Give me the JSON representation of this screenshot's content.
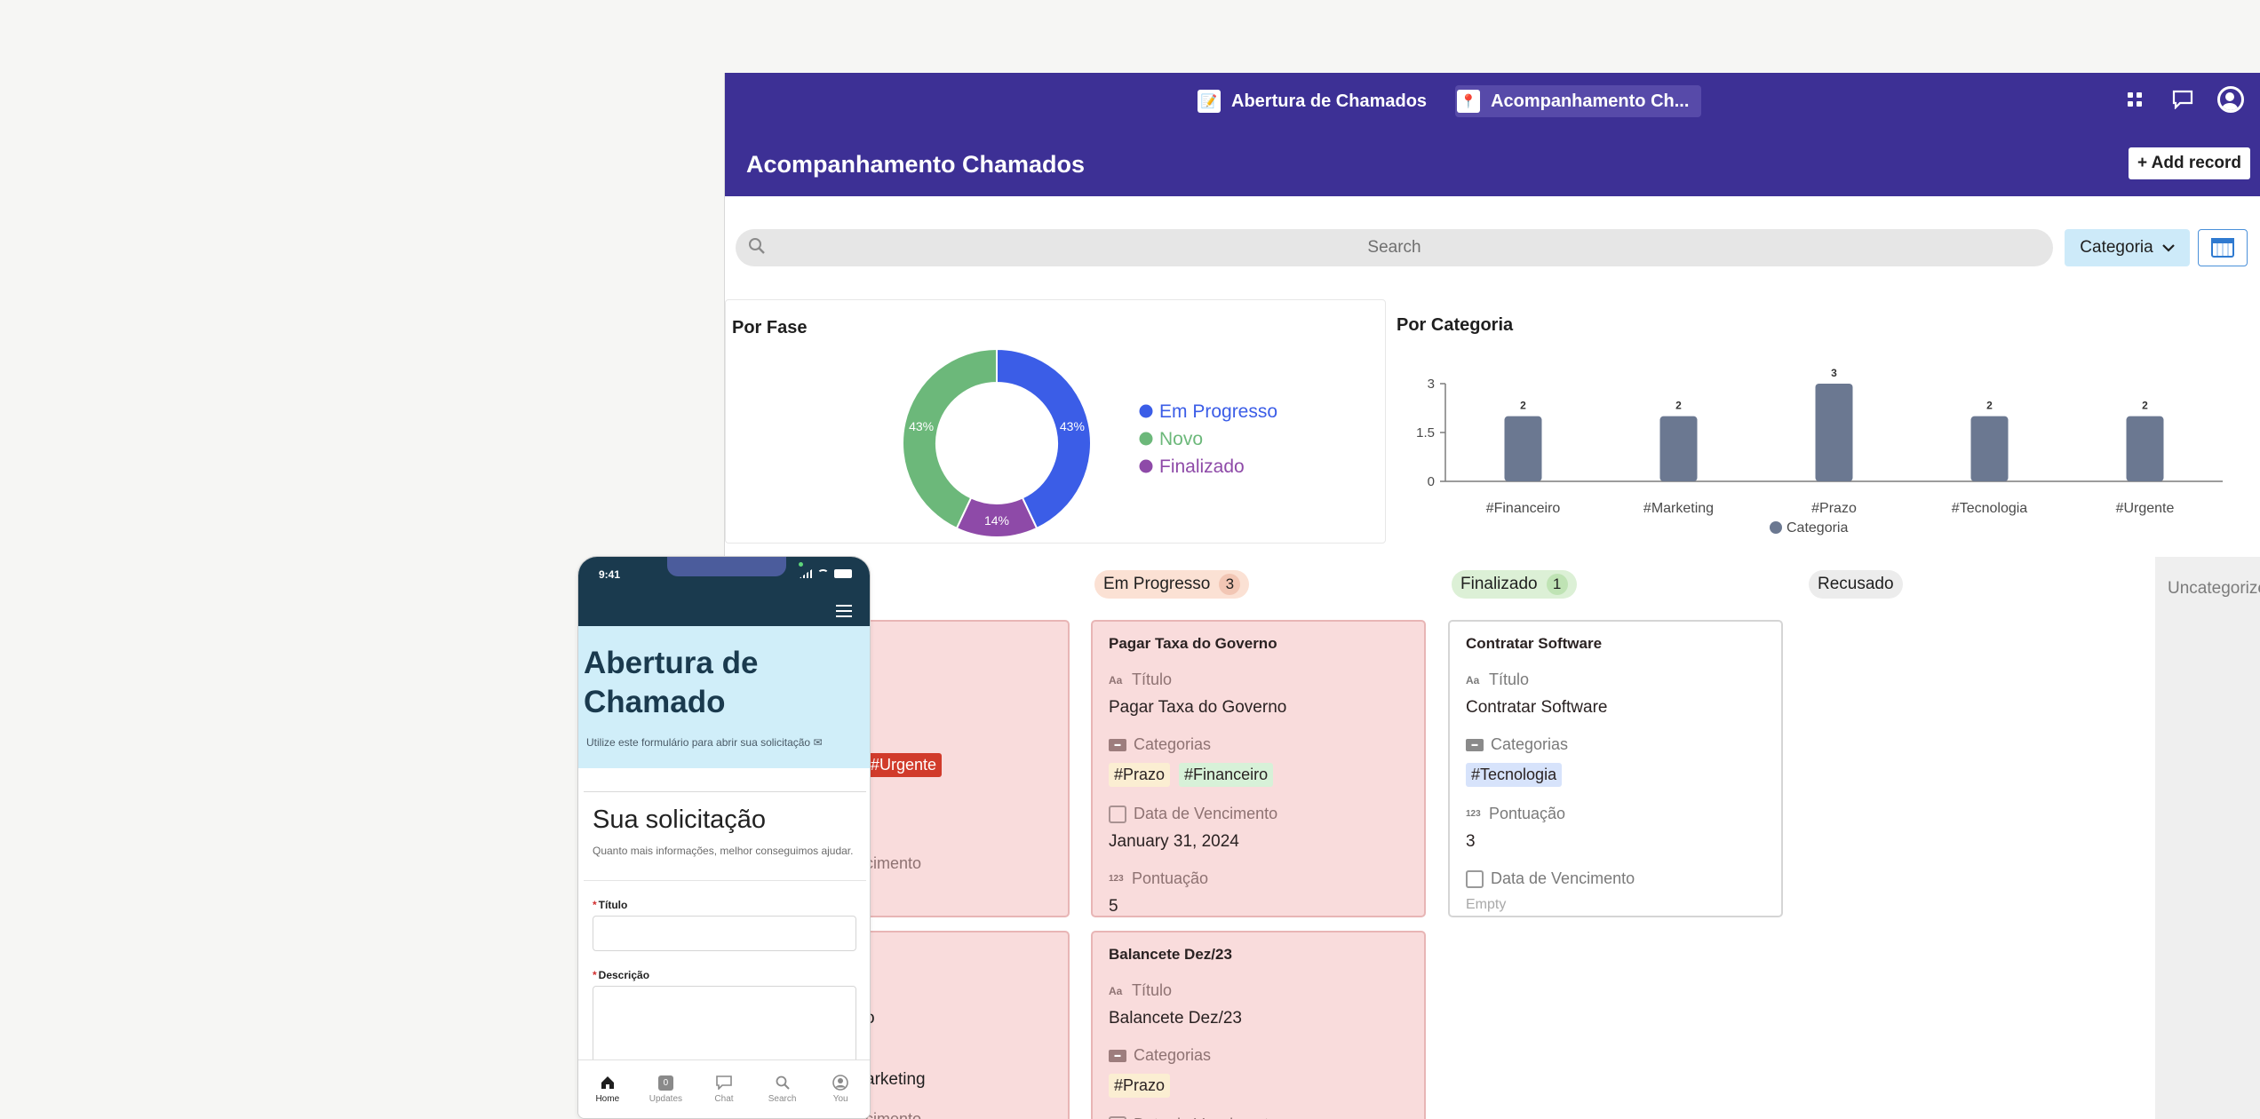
{
  "app": {
    "tabs": [
      {
        "label": "Abertura de Chamados",
        "icon": "notepad-icon"
      },
      {
        "label": "Acompanhamento Ch...",
        "icon": "pin-icon"
      }
    ],
    "page_title": "Acompanhamento Chamados",
    "add_record_label": "+ Add record"
  },
  "search": {
    "placeholder": "Search"
  },
  "filter": {
    "label": "Categoria"
  },
  "pie_chart": {
    "title": "Por Fase",
    "chart_data": {
      "type": "pie",
      "title": "Por Fase",
      "slices": [
        {
          "name": "Em Progresso",
          "value": 43,
          "label": "43%",
          "color": "#3b5de7"
        },
        {
          "name": "Finalizado",
          "value": 14,
          "label": "14%",
          "color": "#8e4aa8"
        },
        {
          "name": "Novo",
          "value": 43,
          "label": "43%",
          "color": "#6cb87a"
        }
      ],
      "legend": [
        {
          "name": "Em Progresso",
          "color": "#3b5de7"
        },
        {
          "name": "Novo",
          "color": "#6cb87a"
        },
        {
          "name": "Finalizado",
          "color": "#8e4aa8"
        }
      ],
      "legend_position": "right"
    }
  },
  "bar_chart": {
    "title": "Por Categoria",
    "chart_data": {
      "type": "bar",
      "title": "Por Categoria",
      "categories": [
        "#Financeiro",
        "#Marketing",
        "#Prazo",
        "#Tecnologia",
        "#Urgente"
      ],
      "series": [
        {
          "name": "Categoria",
          "values": [
            2,
            2,
            3,
            2,
            2
          ]
        }
      ],
      "data_labels": [
        "2",
        "2",
        "3",
        "2",
        "2"
      ],
      "y_ticks": [
        "0",
        "1.5",
        "3"
      ],
      "ylim": [
        0,
        3
      ],
      "bar_color": "#6b7891",
      "legend_position": "bottom"
    }
  },
  "kanban": {
    "columns": [
      {
        "label": "Em Progresso",
        "count": "3"
      },
      {
        "label": "Finalizado",
        "count": "1"
      },
      {
        "label": "Recusado"
      },
      {
        "label": "Uncategorized"
      }
    ],
    "partial": {
      "urgente_tag": "#Urgente",
      "vencimento_1": "cimento",
      "value_o": "o",
      "marketing": "arketing",
      "vencimento_2": "cimento"
    },
    "field_labels": {
      "titulo": "Título",
      "categorias": "Categorias",
      "vencimento": "Data de Vencimento",
      "pontuacao": "Pontuação",
      "aa_icon": "Aa",
      "num_icon": "123"
    },
    "cards": {
      "card1": {
        "title": "Pagar Taxa do Governo",
        "titulo": "Pagar Taxa do Governo",
        "tags": [
          "#Prazo",
          "#Financeiro"
        ],
        "vencimento": "January 31, 2024",
        "pontuacao": "5"
      },
      "card2": {
        "title": "Balancete Dez/23",
        "titulo": "Balancete Dez/23",
        "tags": [
          "#Prazo"
        ]
      },
      "card3": {
        "title": "Contratar Software",
        "titulo": "Contratar Software",
        "tags": [
          "#Tecnologia"
        ],
        "pontuacao": "3",
        "vencimento_empty": "Empty"
      }
    }
  },
  "phone": {
    "time": "9:41",
    "hero_title": "Abertura de Chamado",
    "hero_subtitle": "Utilize este formulário para abrir sua solicitação ✉",
    "form_title": "Sua solicitação",
    "form_subtitle": "Quanto mais informações, melhor conseguimos ajudar.",
    "field_titulo": "Título",
    "field_descricao": "Descrição",
    "required_mark": "*",
    "nav": [
      {
        "label": "Home",
        "icon": "home-icon"
      },
      {
        "label": "Updates",
        "icon": "updates-icon",
        "badge": "0"
      },
      {
        "label": "Chat",
        "icon": "chat-icon"
      },
      {
        "label": "Search",
        "icon": "search-icon"
      },
      {
        "label": "You",
        "icon": "user-icon"
      }
    ]
  },
  "colors": {
    "header_bg": "#3d3095",
    "card_red": "#f9dcdc",
    "tag_prazo": "#fbeed2",
    "tag_financeiro": "#d7f1d8",
    "tag_tecnologia": "#d7e3fb",
    "tag_urgente": "#d13b2b"
  }
}
